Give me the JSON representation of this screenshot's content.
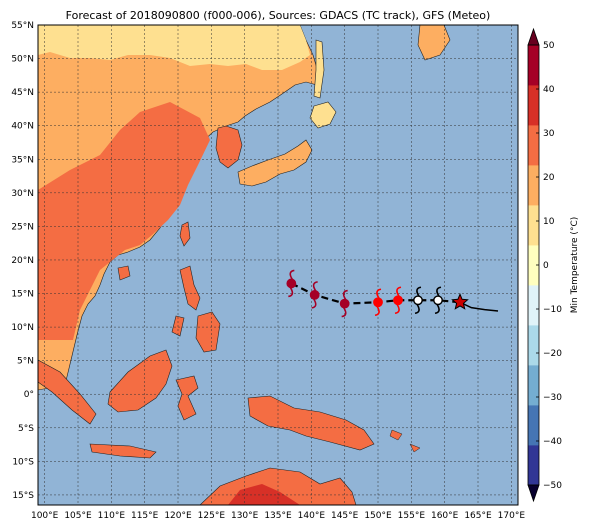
{
  "title": "Forecast of 2018090800 (f000-006), Sources: GDACS (TC track), GFS (Meteo)",
  "chart_data": {
    "type": "map",
    "x_range": [
      99,
      171
    ],
    "y_range": [
      -16.5,
      55
    ],
    "lat_ticks": [
      "55°N",
      "50°N",
      "45°N",
      "40°N",
      "35°N",
      "30°N",
      "25°N",
      "20°N",
      "15°N",
      "10°N",
      "5°N",
      "0°",
      "5°S",
      "10°S",
      "15°S"
    ],
    "lat_values": [
      55,
      50,
      45,
      40,
      35,
      30,
      25,
      20,
      15,
      10,
      5,
      0,
      -5,
      -10,
      -15
    ],
    "lon_ticks": [
      "100°E",
      "105°E",
      "110°E",
      "115°E",
      "120°E",
      "125°E",
      "130°E",
      "135°E",
      "140°E",
      "145°E",
      "150°E",
      "155°E",
      "160°E",
      "165°E",
      "170°E"
    ],
    "lon_values": [
      100,
      105,
      110,
      115,
      120,
      125,
      130,
      135,
      140,
      145,
      150,
      155,
      160,
      165,
      170
    ],
    "grid": true,
    "colorbar": {
      "label": "Min Temperature (°C)",
      "range": [
        -50,
        50
      ],
      "step": 10,
      "tick_values": [
        50,
        40,
        30,
        20,
        10,
        0,
        -10,
        -20,
        -30,
        -40,
        -50
      ],
      "tick_labels": [
        "50",
        "40",
        "30",
        "20",
        "10",
        "0",
        "−10",
        "−20",
        "−30",
        "−40",
        "−50"
      ],
      "colors": [
        "#313695",
        "#4575b4",
        "#74add1",
        "#abd9e9",
        "#e0f3f8",
        "#ffffbf",
        "#fee090",
        "#fdae61",
        "#f46d43",
        "#d73027",
        "#a50026"
      ]
    },
    "track": {
      "points": [
        {
          "lon": 137.0,
          "lat": 16.5,
          "marker": "storm",
          "color": "#a50026"
        },
        {
          "lon": 140.5,
          "lat": 14.8,
          "marker": "storm",
          "color": "#a50026"
        },
        {
          "lon": 145.0,
          "lat": 13.5,
          "marker": "storm",
          "color": "#a50026"
        },
        {
          "lon": 150.0,
          "lat": 13.7,
          "marker": "storm",
          "color": "#ff0000"
        },
        {
          "lon": 153.0,
          "lat": 14.0,
          "marker": "storm",
          "color": "#ff0000"
        },
        {
          "lon": 156.0,
          "lat": 14.0,
          "marker": "storm",
          "color": "#000000"
        },
        {
          "lon": 159.0,
          "lat": 14.0,
          "marker": "storm",
          "color": "#000000"
        },
        {
          "lon": 162.3,
          "lat": 13.7,
          "marker": "star",
          "color": "#cc0000"
        }
      ],
      "history_line": [
        [
          162.3,
          13.7
        ],
        [
          164,
          12.9
        ],
        [
          166,
          12.6
        ],
        [
          168,
          12.4
        ]
      ]
    }
  }
}
